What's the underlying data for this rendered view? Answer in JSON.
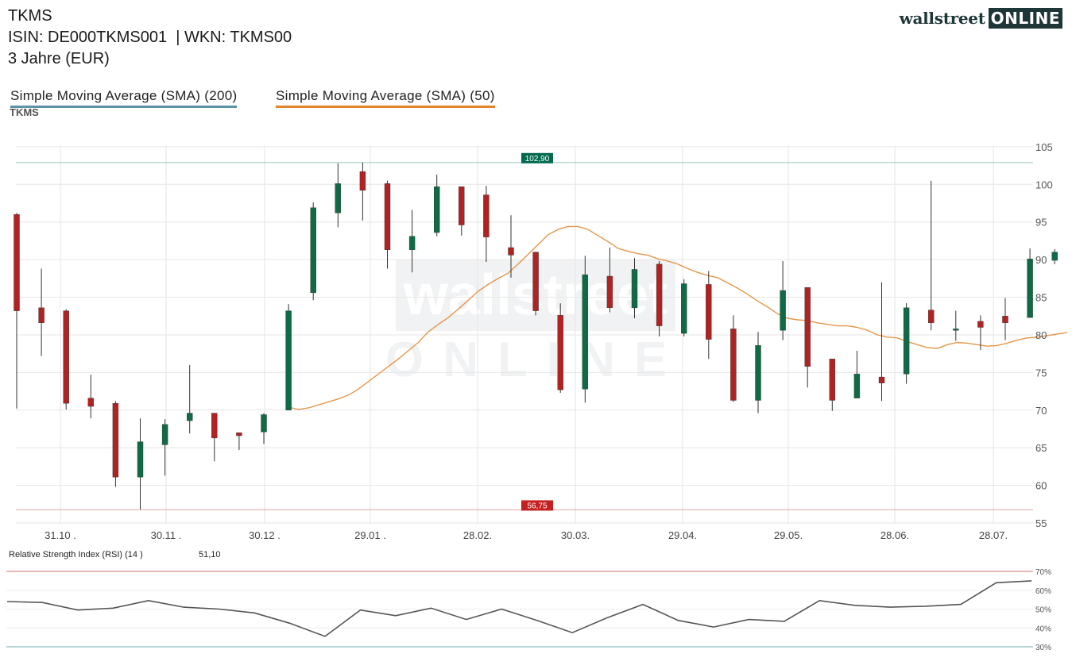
{
  "header": {
    "title": "TKMS",
    "isin_line": "ISIN: DE000TKMS001  | WKN: TKMS00",
    "period": "3 Jahre (EUR)"
  },
  "logo": {
    "word": "wallstreet",
    "box": "ONLINE"
  },
  "watermark": {
    "word": "wallstreet",
    "box": "ONLINE"
  },
  "legend": {
    "sma200": {
      "label": "Simple Moving Average (SMA) (200)",
      "color": "#5b93a8"
    },
    "sma50": {
      "label": "Simple Moving Average (SMA) (50)",
      "color": "#e2842b"
    }
  },
  "symbol": "TKMS",
  "chart_data": [
    {
      "type": "candlestick",
      "x_tick_labels": [
        "31.10 .",
        "30.11 .",
        "30.12 .",
        "29.01 .",
        "28.02.",
        "30.03.",
        "29.04.",
        "29.05.",
        "28.06.",
        "28.07."
      ],
      "y_ticks": [
        105,
        100,
        95,
        90,
        85,
        80,
        75,
        70,
        65,
        60,
        55
      ],
      "ylim": [
        54.9,
        105.2
      ],
      "grid": true,
      "high_line": {
        "value": 102.9,
        "label": "102,90",
        "color": "#006b4f"
      },
      "low_line": {
        "value": 56.75,
        "label": "56,75",
        "color": "#c51f1f"
      },
      "up_color": "#0f6b45",
      "down_color": "#b12222",
      "candles": [
        {
          "o": 96.0,
          "h": 96.2,
          "l": 70.2,
          "c": 83.2
        },
        {
          "o": 83.6,
          "h": 88.8,
          "l": 77.2,
          "c": 81.6
        },
        {
          "o": 83.2,
          "h": 83.4,
          "l": 70.1,
          "c": 70.9
        },
        {
          "o": 71.6,
          "h": 74.7,
          "l": 68.9,
          "c": 70.5
        },
        {
          "o": 70.9,
          "h": 71.2,
          "l": 59.8,
          "c": 61.1
        },
        {
          "o": 61.1,
          "h": 68.9,
          "l": 56.8,
          "c": 65.8
        },
        {
          "o": 65.4,
          "h": 68.8,
          "l": 61.3,
          "c": 68.1
        },
        {
          "o": 68.6,
          "h": 76.0,
          "l": 66.9,
          "c": 69.6
        },
        {
          "o": 69.6,
          "h": 69.6,
          "l": 63.2,
          "c": 66.3
        },
        {
          "o": 67.0,
          "h": 67.0,
          "l": 64.7,
          "c": 66.6
        },
        {
          "o": 67.1,
          "h": 69.6,
          "l": 65.5,
          "c": 69.4
        },
        {
          "o": 70.0,
          "h": 84.1,
          "l": 70.0,
          "c": 83.2
        },
        {
          "o": 85.6,
          "h": 97.6,
          "l": 84.6,
          "c": 96.9
        },
        {
          "o": 96.2,
          "h": 102.8,
          "l": 94.3,
          "c": 100.1
        },
        {
          "o": 101.7,
          "h": 102.9,
          "l": 95.2,
          "c": 99.2
        },
        {
          "o": 100.1,
          "h": 100.5,
          "l": 88.8,
          "c": 91.3
        },
        {
          "o": 91.3,
          "h": 96.6,
          "l": 88.3,
          "c": 93.1
        },
        {
          "o": 93.6,
          "h": 101.3,
          "l": 93.1,
          "c": 99.7
        },
        {
          "o": 99.7,
          "h": 99.7,
          "l": 93.2,
          "c": 94.6
        },
        {
          "o": 98.6,
          "h": 99.8,
          "l": 89.7,
          "c": 93.0
        },
        {
          "o": 91.6,
          "h": 95.9,
          "l": 87.6,
          "c": 90.6
        },
        {
          "o": 91.0,
          "h": 91.0,
          "l": 82.6,
          "c": 83.2
        },
        {
          "o": 82.6,
          "h": 84.2,
          "l": 72.3,
          "c": 72.7
        },
        {
          "o": 72.8,
          "h": 90.5,
          "l": 71.0,
          "c": 88.0
        },
        {
          "o": 87.8,
          "h": 91.6,
          "l": 83.0,
          "c": 83.6
        },
        {
          "o": 83.6,
          "h": 90.2,
          "l": 82.2,
          "c": 88.7
        },
        {
          "o": 89.4,
          "h": 89.8,
          "l": 79.8,
          "c": 81.2
        },
        {
          "o": 80.2,
          "h": 87.4,
          "l": 79.8,
          "c": 86.8
        },
        {
          "o": 86.7,
          "h": 88.5,
          "l": 76.8,
          "c": 79.4
        },
        {
          "o": 80.8,
          "h": 82.6,
          "l": 71.1,
          "c": 71.3
        },
        {
          "o": 71.3,
          "h": 80.4,
          "l": 69.6,
          "c": 78.6
        },
        {
          "o": 80.6,
          "h": 89.8,
          "l": 79.3,
          "c": 85.9
        },
        {
          "o": 86.3,
          "h": 86.3,
          "l": 73.0,
          "c": 75.8
        },
        {
          "o": 76.8,
          "h": 76.8,
          "l": 69.9,
          "c": 71.3
        },
        {
          "o": 71.6,
          "h": 77.9,
          "l": 71.6,
          "c": 74.8
        },
        {
          "o": 74.4,
          "h": 87.0,
          "l": 71.2,
          "c": 73.6
        },
        {
          "o": 74.8,
          "h": 84.2,
          "l": 73.5,
          "c": 83.6
        },
        {
          "o": 83.3,
          "h": 100.5,
          "l": 80.6,
          "c": 81.6
        },
        {
          "o": 80.6,
          "h": 83.2,
          "l": 79.2,
          "c": 80.8
        },
        {
          "o": 81.8,
          "h": 82.6,
          "l": 78.0,
          "c": 81.0
        },
        {
          "o": 82.5,
          "h": 84.9,
          "l": 79.3,
          "c": 81.6
        },
        {
          "o": 82.3,
          "h": 91.5,
          "l": 82.3,
          "c": 90.1
        },
        {
          "o": 89.9,
          "h": 91.4,
          "l": 89.4,
          "c": 91.0
        }
      ],
      "sma50": {
        "start_index": 11,
        "values": [
          70.4,
          70.1,
          70.3,
          70.7,
          71.1,
          71.5,
          72.0,
          72.8,
          73.8,
          74.8,
          75.8,
          76.8,
          77.9,
          79.0,
          80.4,
          81.4,
          82.3,
          83.4,
          84.6,
          85.8,
          86.7,
          87.5,
          88.2,
          89.4,
          90.7,
          92.0,
          93.3,
          94.0,
          94.4,
          94.4,
          94.0,
          93.2,
          92.4,
          91.5,
          91.1,
          90.8,
          90.6,
          90.1,
          89.8,
          89.4,
          88.8,
          88.3,
          87.9,
          87.6,
          86.9,
          86.2,
          85.4,
          84.5,
          83.7,
          82.8,
          82.2,
          82.0,
          81.9,
          81.6,
          81.4,
          81.2,
          81.2,
          81.0,
          80.6,
          80.0,
          79.7,
          79.6,
          79.1,
          78.7,
          78.3,
          78.2,
          78.7,
          79.0,
          78.9,
          78.7,
          78.5,
          78.6,
          78.9,
          79.3,
          79.6,
          79.7,
          79.9,
          80.1,
          80.3
        ],
        "end_index": 42.5
      }
    },
    {
      "type": "line",
      "title": "Relative Strength Index (RSI) (14 )",
      "value_label": "51,10",
      "y_ticks": [
        "70%",
        "60%",
        "50%",
        "40%",
        "30%"
      ],
      "ylim": [
        30,
        70
      ],
      "upper_line": {
        "value": 70,
        "color": "#e0a0a0"
      },
      "lower_line": {
        "value": 30,
        "color": "#9fc8c8"
      },
      "values": [
        54.0,
        53.5,
        49.5,
        50.5,
        54.5,
        51.0,
        50.0,
        48.0,
        42.5,
        35.5,
        49.5,
        46.5,
        50.5,
        44.5,
        50.0,
        44.0,
        37.5,
        45.5,
        52.5,
        44.0,
        40.5,
        44.5,
        43.5,
        54.5,
        52.0,
        51.0,
        51.5,
        52.5,
        64.0,
        65.0
      ]
    }
  ]
}
